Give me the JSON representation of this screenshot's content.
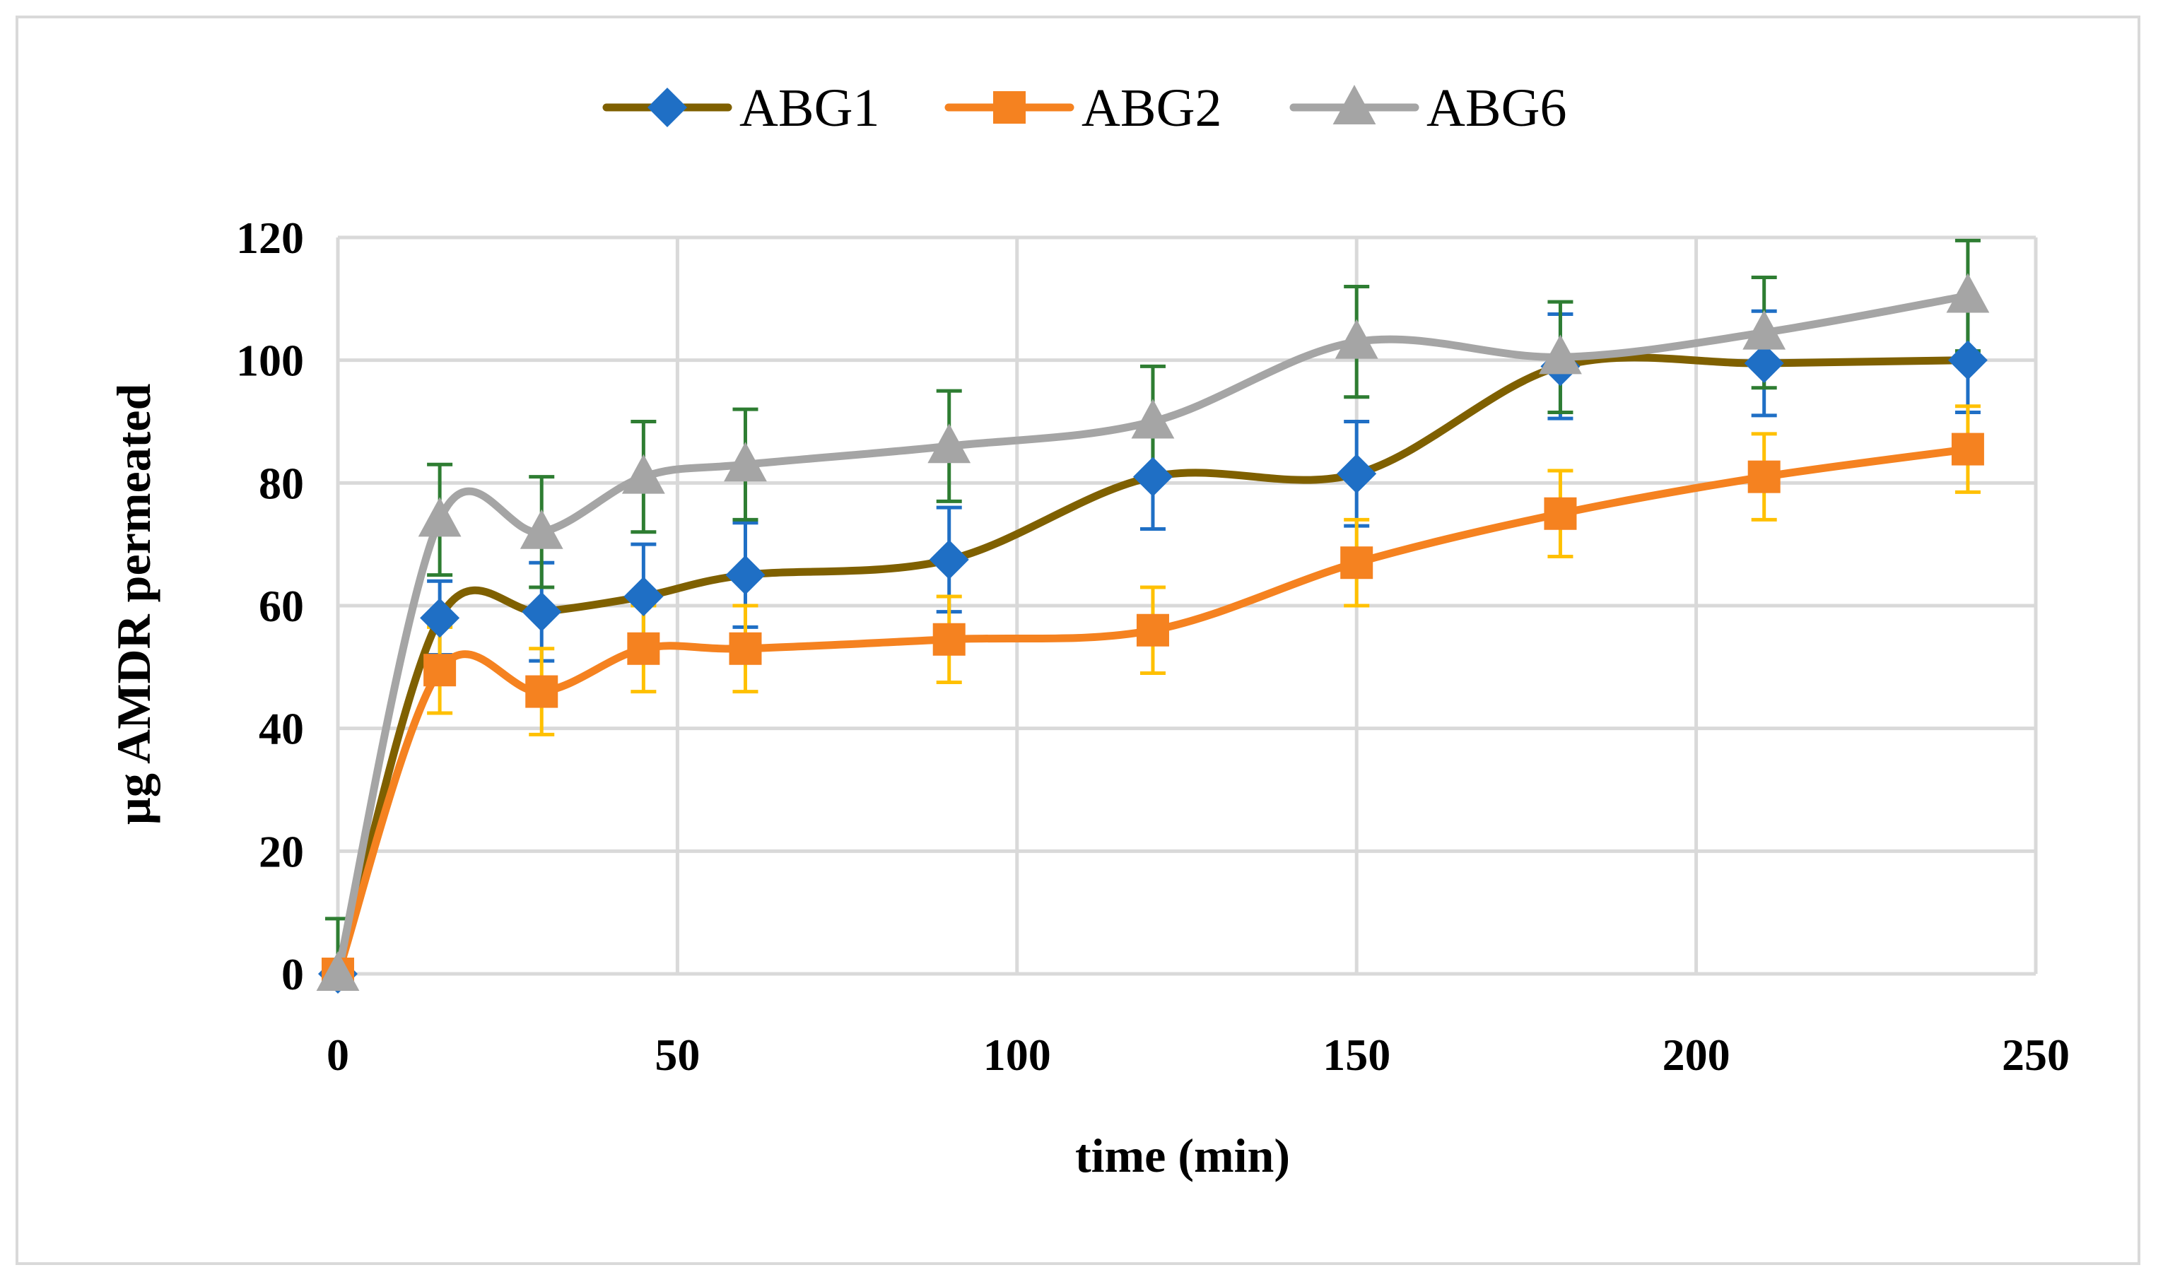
{
  "chart_data": {
    "type": "line",
    "title": "",
    "xlabel": "time (min)",
    "ylabel": "µg AMDR permeated",
    "xlim": [
      0,
      250
    ],
    "ylim": [
      0,
      120
    ],
    "xticks": [
      "0",
      "50",
      "100",
      "150",
      "200",
      "250"
    ],
    "yticks": [
      "0",
      "20",
      "40",
      "60",
      "80",
      "100",
      "120"
    ],
    "grid": true,
    "smooth": true,
    "legend_position": "top-center",
    "x": [
      0,
      15,
      30,
      45,
      60,
      90,
      120,
      150,
      180,
      210,
      240
    ],
    "series": [
      {
        "name": "ABG1",
        "line_color": "#7f6000",
        "marker_color": "#1f6fc5",
        "error_color": "#1f6fc5",
        "marker": "diamond",
        "values": [
          0,
          58,
          59,
          61.5,
          65,
          67.5,
          81,
          81.5,
          99,
          99.5,
          100
        ],
        "errors": [
          0,
          6,
          8,
          8.5,
          8.5,
          8.5,
          8.5,
          8.5,
          8.5,
          8.5,
          8.5
        ]
      },
      {
        "name": "ABG2",
        "line_color": "#f58220",
        "marker_color": "#f58220",
        "error_color": "#ffc000",
        "marker": "square",
        "values": [
          0,
          49.5,
          46,
          53,
          53,
          54.5,
          56,
          67,
          75,
          81,
          85.5
        ],
        "errors": [
          0,
          7,
          7,
          7,
          7,
          7,
          7,
          7,
          7,
          7,
          7
        ]
      },
      {
        "name": "ABG6",
        "line_color": "#a5a5a5",
        "marker_color": "#a5a5a5",
        "error_color": "#2e7d32",
        "marker": "triangle",
        "values": [
          0,
          74,
          72,
          81,
          83,
          86,
          90,
          103,
          100.5,
          104.5,
          110.5
        ],
        "errors": [
          9,
          9,
          9,
          9,
          9,
          9,
          9,
          9,
          9,
          9,
          9
        ]
      }
    ]
  }
}
